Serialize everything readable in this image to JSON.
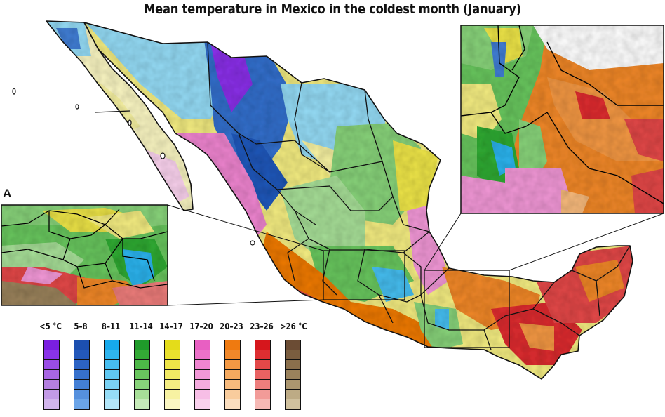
{
  "title": "Mean temperature in Mexico in the coldest month (January)",
  "inset_a_label": "A",
  "legend": [
    {
      "label": "<5 °C",
      "colors": [
        "#7a1fe0",
        "#8a33e8",
        "#9a4de6",
        "#a866e3",
        "#b47fe0",
        "#c39ae6",
        "#d2b5ec"
      ]
    },
    {
      "label": "5–8",
      "colors": [
        "#1c4fb0",
        "#2358ba",
        "#2c63c4",
        "#3670cc",
        "#437fd6",
        "#5590de",
        "#6aa4e8"
      ]
    },
    {
      "label": "8–11",
      "colors": [
        "#16a9ec",
        "#2fb4ee",
        "#47bef0",
        "#60c8f2",
        "#7ad2f4",
        "#95dcf6",
        "#b2e6f9"
      ]
    },
    {
      "label": "11–14",
      "colors": [
        "#1f9b2a",
        "#33aa35",
        "#4db848",
        "#69c65e",
        "#88d37a",
        "#a7df98",
        "#c6ebb9"
      ]
    },
    {
      "label": "14–17",
      "colors": [
        "#e4dc1a",
        "#eae12e",
        "#eee548",
        "#f1e964",
        "#f4ed82",
        "#f7f2a2",
        "#faf6c2"
      ]
    },
    {
      "label": "17–20",
      "colors": [
        "#e85fc2",
        "#ec72c9",
        "#ef85d0",
        "#f298d7",
        "#f4abde",
        "#f7bee6",
        "#f9d1ed"
      ]
    },
    {
      "label": "20–23",
      "colors": [
        "#ef7a10",
        "#f1882a",
        "#f39844",
        "#f5a95f",
        "#f7ba7d",
        "#f9cc9d",
        "#fbdebf"
      ]
    },
    {
      "label": "23–26",
      "colors": [
        "#d6161c",
        "#dd2e31",
        "#e34848",
        "#e96262",
        "#ee7e7c",
        "#f29b98",
        "#f6b9b5"
      ]
    },
    {
      "label": ">26 °C",
      "colors": [
        "#6b4c34",
        "#7a5d3f",
        "#8a6f4c",
        "#9a825c",
        "#ab966f",
        "#bdab85",
        "#d0c19e"
      ]
    }
  ]
}
